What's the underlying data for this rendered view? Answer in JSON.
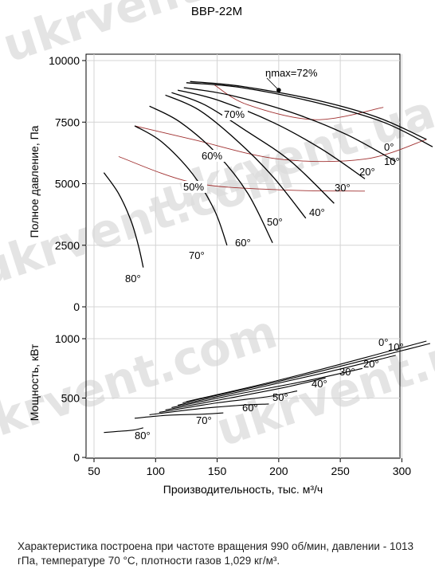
{
  "chart_data": {
    "type": "line",
    "title": "ВВР-22М",
    "xlabel": "Производительность, тыс. м³/ч",
    "xlim": [
      50,
      335
    ],
    "xticks": [
      "50",
      "100",
      "150",
      "200",
      "250",
      "300"
    ],
    "watermark": "ukrvent.com",
    "watermark2": "ukrvent.ua",
    "pressure": {
      "ylabel": "Полное давление, Па",
      "ylim": [
        0,
        10000
      ],
      "yticks": [
        "0",
        "2500",
        "5000",
        "7500",
        "10000"
      ],
      "series": [
        {
          "name": "0°",
          "points": [
            [
              128,
              9150
            ],
            [
              170,
              8950
            ],
            [
              230,
              8400
            ],
            [
              280,
              7700
            ],
            [
              320,
              6800
            ]
          ]
        },
        {
          "name": "10°",
          "points": [
            [
              125,
              9100
            ],
            [
              170,
              8900
            ],
            [
              230,
              8300
            ],
            [
              285,
              7500
            ],
            [
              325,
              6500
            ]
          ]
        },
        {
          "name": "20°",
          "points": [
            [
              123,
              8900
            ],
            [
              160,
              8600
            ],
            [
              210,
              7900
            ],
            [
              255,
              7000
            ],
            [
              295,
              5900
            ]
          ]
        },
        {
          "name": "30°",
          "points": [
            [
              118,
              8800
            ],
            [
              150,
              8400
            ],
            [
              195,
              7500
            ],
            [
              235,
              6400
            ],
            [
              270,
              5200
            ]
          ]
        },
        {
          "name": "40°",
          "points": [
            [
              113,
              8700
            ],
            [
              140,
              8200
            ],
            [
              175,
              7100
            ],
            [
              210,
              5900
            ],
            [
              245,
              4200
            ]
          ]
        },
        {
          "name": "50°",
          "points": [
            [
              108,
              8600
            ],
            [
              135,
              8000
            ],
            [
              165,
              6800
            ],
            [
              195,
              5300
            ],
            [
              222,
              3600
            ]
          ]
        },
        {
          "name": "60°",
          "points": [
            [
              95,
              8150
            ],
            [
              120,
              7500
            ],
            [
              150,
              6200
            ],
            [
              175,
              4600
            ],
            [
              195,
              2600
            ]
          ]
        },
        {
          "name": "70°",
          "points": [
            [
              83,
              7350
            ],
            [
              105,
              6700
            ],
            [
              130,
              5400
            ],
            [
              148,
              3900
            ],
            [
              158,
              2500
            ]
          ]
        },
        {
          "name": "80°",
          "points": [
            [
              58,
              5450
            ],
            [
              70,
              4600
            ],
            [
              80,
              3500
            ],
            [
              86,
              2500
            ],
            [
              90,
              1600
            ]
          ]
        }
      ],
      "efficiency": [
        {
          "name": "ηmax=72%",
          "value": 72,
          "point": [
            200,
            8800
          ]
        },
        {
          "name": "70%",
          "value": 70,
          "points": [
            [
              148,
              9000
            ],
            [
              175,
              8200
            ],
            [
              230,
              7600
            ],
            [
              285,
              8100
            ]
          ]
        },
        {
          "name": "60%",
          "value": 60,
          "points": [
            [
              83,
              7350
            ],
            [
              130,
              6800
            ],
            [
              200,
              6000
            ],
            [
              270,
              6000
            ],
            [
              320,
              6800
            ]
          ]
        },
        {
          "name": "50%",
          "value": 50,
          "points": [
            [
              70,
              6100
            ],
            [
              130,
              5050
            ],
            [
              200,
              4750
            ],
            [
              270,
              4700
            ]
          ]
        }
      ]
    },
    "power": {
      "ylabel": "Мощность, кВт",
      "ylim": [
        0,
        1000
      ],
      "yticks": [
        "0",
        "500",
        "1000"
      ],
      "series": [
        {
          "name": "0°",
          "points": [
            [
              125,
              470
            ],
            [
              200,
              650
            ],
            [
              270,
              840
            ],
            [
              320,
              980
            ]
          ]
        },
        {
          "name": "10°",
          "points": [
            [
              122,
              460
            ],
            [
              200,
              640
            ],
            [
              270,
              820
            ],
            [
              323,
              960
            ]
          ]
        },
        {
          "name": "20°",
          "points": [
            [
              118,
              440
            ],
            [
              180,
              580
            ],
            [
              240,
              720
            ],
            [
              295,
              860
            ]
          ]
        },
        {
          "name": "30°",
          "points": [
            [
              113,
              420
            ],
            [
              170,
              540
            ],
            [
              225,
              650
            ],
            [
              268,
              750
            ]
          ]
        },
        {
          "name": "40°",
          "points": [
            [
              108,
              400
            ],
            [
              160,
              500
            ],
            [
              205,
              590
            ],
            [
              238,
              670
            ]
          ]
        },
        {
          "name": "50°",
          "points": [
            [
              103,
              380
            ],
            [
              150,
              460
            ],
            [
              190,
              510
            ],
            [
              215,
              560
            ]
          ]
        },
        {
          "name": "60°",
          "points": [
            [
              95,
              360
            ],
            [
              135,
              410
            ],
            [
              170,
              440
            ],
            [
              192,
              450
            ]
          ]
        },
        {
          "name": "70°",
          "points": [
            [
              83,
              330
            ],
            [
              110,
              355
            ],
            [
              140,
              365
            ],
            [
              155,
              375
            ]
          ]
        },
        {
          "name": "80°",
          "points": [
            [
              58,
              210
            ],
            [
              70,
              220
            ],
            [
              82,
              230
            ],
            [
              90,
              250
            ]
          ]
        }
      ]
    }
  },
  "caption": "Характеристика построена при частоте вращения 990 об/мин, давлении - 1013 гПа, температуре 70 °С, плотности газов 1,029 кг/м³."
}
